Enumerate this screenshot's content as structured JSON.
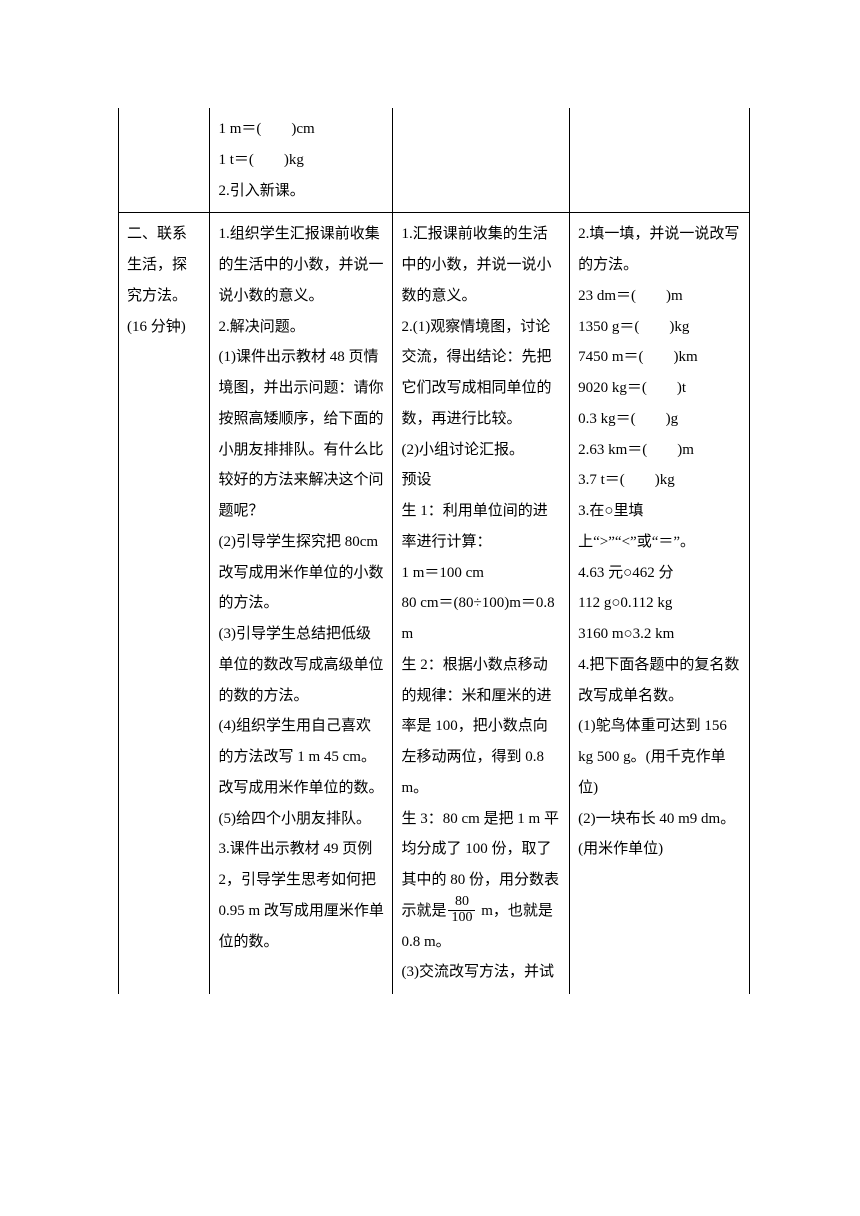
{
  "row1": {
    "col2_a": "1 m＝(　　)cm",
    "col2_b": "1 t＝(　　)kg",
    "col2_c": "2.引入新课。"
  },
  "row2": {
    "col1_a": "二、联系生活，探究方法。",
    "col1_b": "(16 分钟)",
    "col2": [
      "1.组织学生汇报课前收集的生活中的小数，并说一说小数的意义。",
      "2.解决问题。",
      "(1)课件出示教材 48 页情境图，并出示问题：请你按照高矮顺序，给下面的小朋友排排队。有什么比较好的方法来解决这个问题呢？",
      "(2)引导学生探究把 80cm改写成用米作单位的小数的方法。",
      "(3)引导学生总结把低级单位的数改写成高级单位的数的方法。",
      "(4)组织学生用自己喜欢的方法改写 1 m 45 cm。改写成用米作单位的数。",
      "(5)给四个小朋友排队。",
      "3.课件出示教材 49 页例2，引导学生思考如何把0.95 m 改写成用厘米作单位的数。"
    ],
    "col3": {
      "p1": "1.汇报课前收集的生活中的小数，并说一说小数的意义。",
      "p2": "2.(1)观察情境图，讨论交流，得出结论：先把它们改写成相同单位的数，再进行比较。",
      "p3": "(2)小组讨论汇报。",
      "p4": "预设",
      "p5": "生 1：利用单位间的进率进行计算：",
      "p6": "1 m＝100 cm",
      "p7": "80 cm＝(80÷100)m＝0.8 m",
      "p8": "生 2：根据小数点移动的规律：米和厘米的进率是 100，把小数点向左移动两位，得到 0.8 m。",
      "p9a": "生 3：80 cm 是把 1 m 平均分成了 100 份，取了其中的 80 份，用分数表示就是",
      "p9b": " m，也就是0.8 m。",
      "p10": "(3)交流改写方法，并试",
      "frac_num": "80",
      "frac_den": "100"
    },
    "col4": [
      "2.填一填，并说一说改写的方法。",
      "23 dm＝(　　)m",
      "1350 g＝(　　)kg",
      "7450 m＝(　　)km",
      "9020 kg＝(　　)t",
      "0.3 kg＝(　　)g",
      "2.63 km＝(　　)m",
      "3.7 t＝(　　)kg",
      "3.在○里填上“>”“<”或“＝”。",
      "4.63 元○462 分",
      "112 g○0.112 kg",
      "3160 m○3.2 km",
      "4.把下面各题中的复名数改写成单名数。",
      "(1)鸵鸟体重可达到 156 kg 500 g。(用千克作单位)",
      "(2)一块布长 40 m9 dm。(用米作单位)"
    ]
  }
}
